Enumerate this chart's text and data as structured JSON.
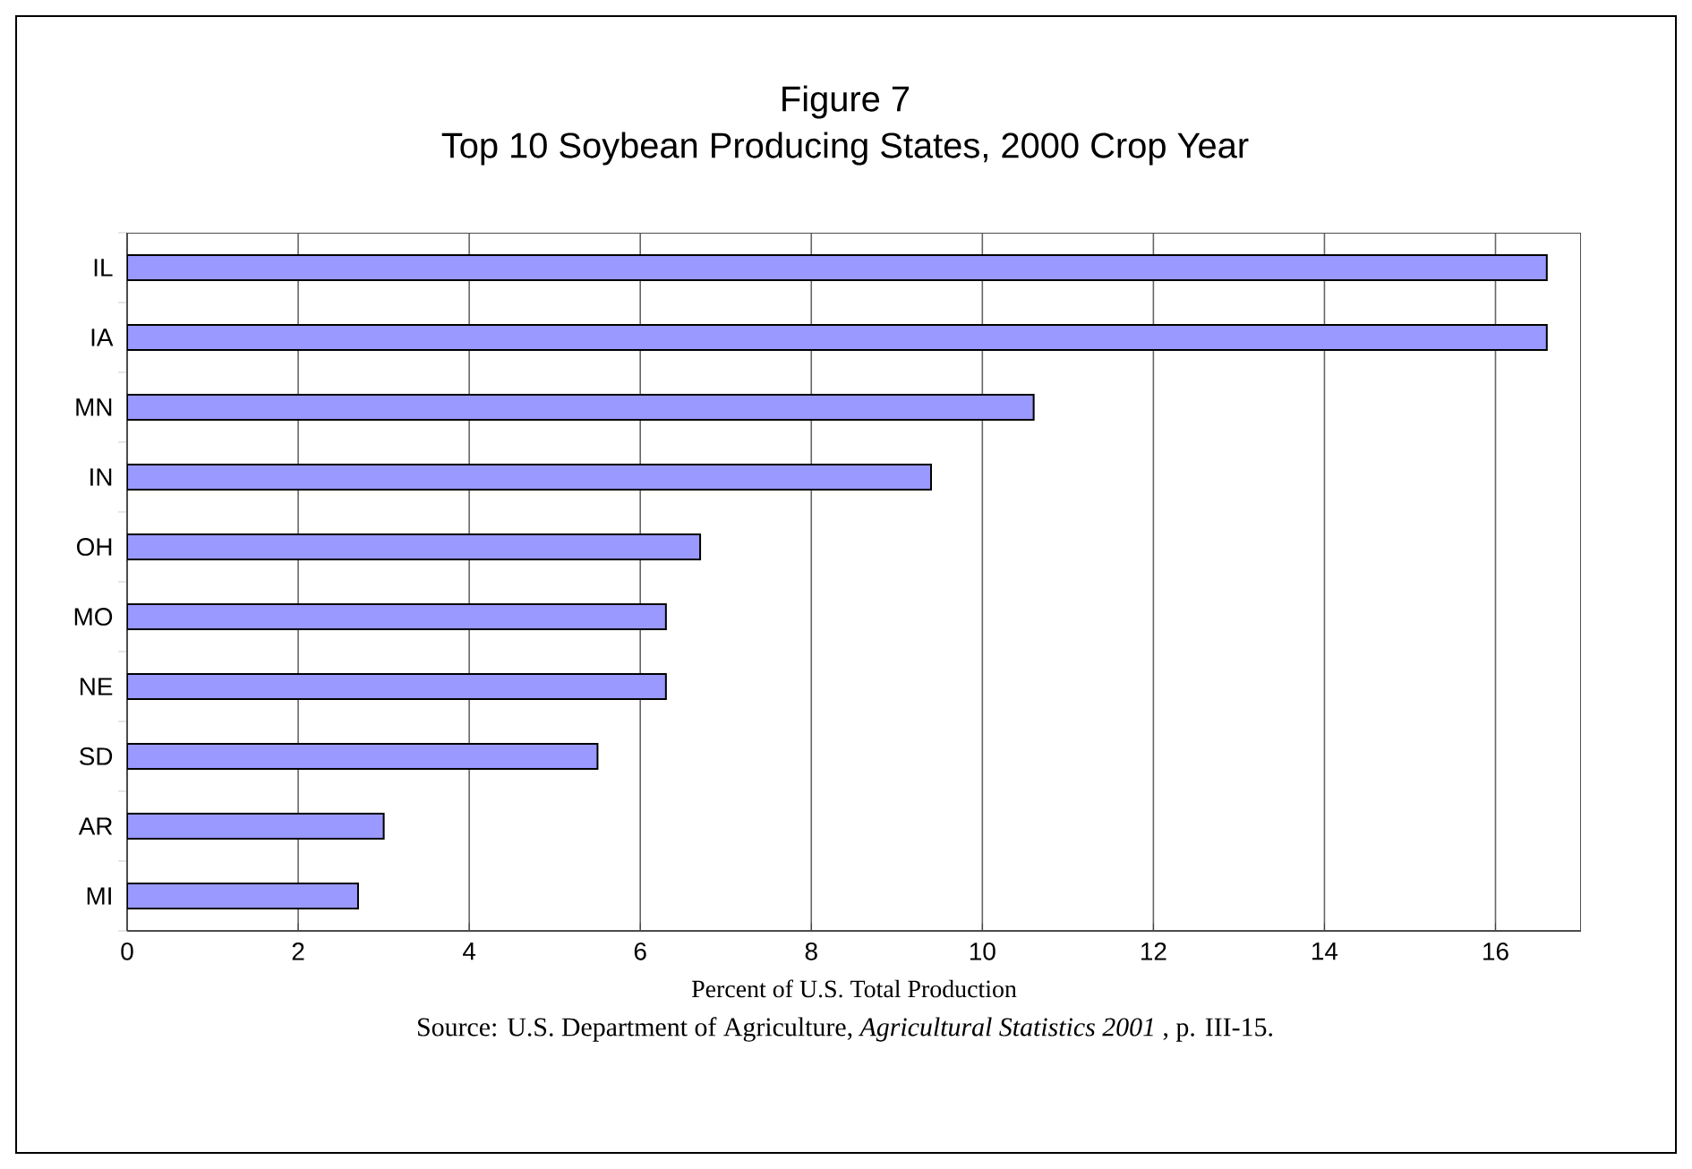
{
  "chart_data": {
    "type": "bar",
    "orientation": "horizontal",
    "title": "Figure 7",
    "subtitle": "Top 10 Soybean Producing States, 2000 Crop Year",
    "categories": [
      "IL",
      "IA",
      "MN",
      "IN",
      "OH",
      "MO",
      "NE",
      "SD",
      "AR",
      "MI"
    ],
    "values": [
      16.6,
      16.6,
      10.6,
      9.4,
      6.7,
      6.3,
      6.3,
      5.5,
      3.0,
      2.7
    ],
    "color": "#9999ff",
    "xlim": [
      0,
      17
    ],
    "xticks": [
      0,
      2,
      4,
      6,
      8,
      10,
      12,
      14,
      16
    ],
    "xlabel": "Percent of U.S. Total Production",
    "grid": "x",
    "annotations": [
      "Source:  U.S. Department of Agriculture, *Agricultural Statistics 2001* , p. III-15."
    ]
  }
}
